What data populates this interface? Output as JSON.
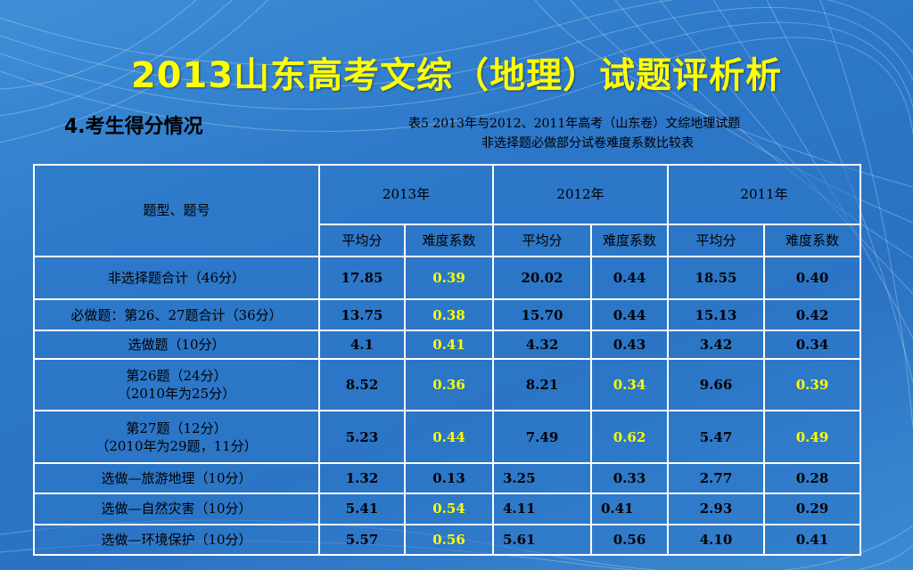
{
  "slide": {
    "title": "2013山东高考文综（地理）试题评析析",
    "section": "4.考生得分情况",
    "caption_line1": "表5   2013年与2012、2011年高考（山东卷）文综地理试题",
    "caption_line2": "非选择题必做部分试卷难度系数比较表"
  },
  "colors": {
    "title": "#ffff00",
    "highlight": "#ffff00",
    "background": "#2d78c9",
    "grid": "#ffffff"
  },
  "table": {
    "corner_header": "题型、题号",
    "years": [
      "2013年",
      "2012年",
      "2011年"
    ],
    "sub_headers": [
      "平均分",
      "难度系数",
      "平均分",
      "难度系数",
      "平均分",
      "难度系数"
    ],
    "rows": [
      {
        "label": "非选择题合计（46分）",
        "label2": "",
        "cells": [
          "17.85",
          "0.39",
          "20.02",
          "0.44",
          "18.55",
          "0.40"
        ]
      },
      {
        "label": "必做题：第26、27题合计（36分）",
        "label2": "",
        "cells": [
          "13.75",
          "0.38",
          "15.70",
          "0.44",
          "15.13",
          "0.42"
        ]
      },
      {
        "label": "选做题（10分）",
        "label2": "",
        "cells": [
          "4.1",
          "0.41",
          "4.32",
          "0.43",
          "3.42",
          "0.34"
        ]
      },
      {
        "label": "第26题（24分）",
        "label2": "（2010年为25分）",
        "cells": [
          "8.52",
          "0.36",
          "8.21",
          "0.34",
          "9.66",
          "0.39"
        ]
      },
      {
        "label": "第27题（12分）",
        "label2": "（2010年为29题，11分）",
        "cells": [
          "5.23",
          "0.44",
          "7.49",
          "0.62",
          "5.47",
          "0.49"
        ]
      },
      {
        "label": "选做—旅游地理（10分）",
        "label2": "",
        "cells": [
          "1.32",
          "0.13",
          "3.25",
          "0.33",
          "2.77",
          "0.28"
        ]
      },
      {
        "label": "选做—自然灾害（10分）",
        "label2": "",
        "cells": [
          "5.41",
          "0.54",
          "4.11",
          "0.41",
          "2.93",
          "0.29"
        ]
      },
      {
        "label": "选做—环境保护（10分）",
        "label2": "",
        "cells": [
          "5.57",
          "0.56",
          "5.61",
          "0.56",
          "4.10",
          "0.41"
        ]
      }
    ]
  }
}
